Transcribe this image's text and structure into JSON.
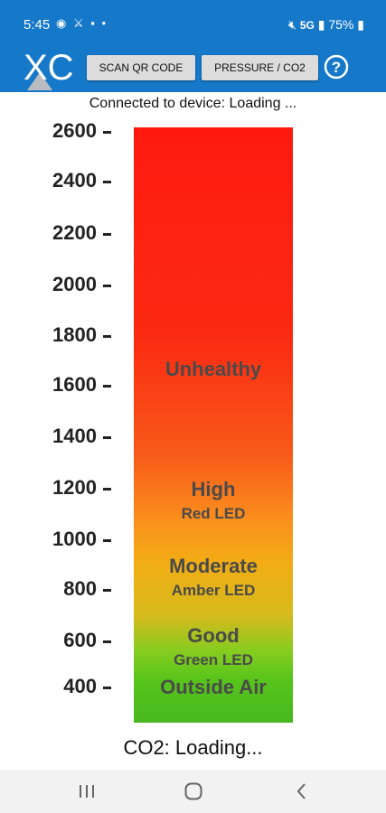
{
  "status": {
    "time": "5:45",
    "left_icons": "◉ ⚔ ▪ •",
    "signal_label": "5G",
    "battery": "75%"
  },
  "header": {
    "logo_text": "XC",
    "scan_button": "SCAN QR CODE",
    "pressure_button": "PRESSURE / CO2"
  },
  "connection": {
    "text": "Connected to device: Loading ..."
  },
  "axis": {
    "ticks": [
      "2600",
      "2400",
      "2200",
      "2000",
      "1800",
      "1600",
      "1400",
      "1200",
      "1000",
      "800",
      "600",
      "400"
    ]
  },
  "zones": {
    "unhealthy": "Unhealthy",
    "high": "High",
    "high_sub": "Red LED",
    "moderate": "Moderate",
    "moderate_sub": "Amber LED",
    "good": "Good",
    "good_sub": "Green LED",
    "outside": "Outside Air"
  },
  "co2_reading": {
    "text": "CO2: Loading..."
  },
  "colors": {
    "primary": "#1578c8",
    "unhealthy": "#ff1a10",
    "moderate": "#f2ac14",
    "good": "#48b820"
  }
}
